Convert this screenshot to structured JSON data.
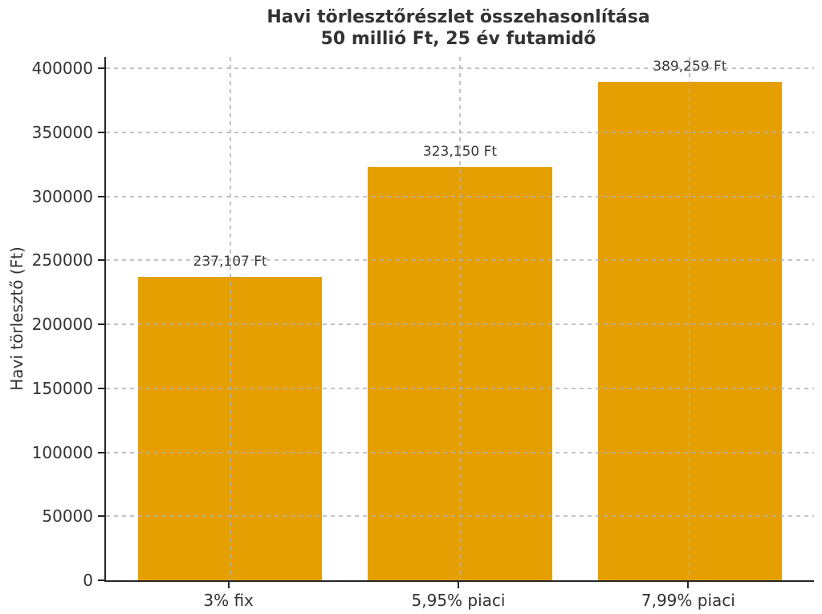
{
  "chart_data": {
    "type": "bar",
    "title": "Havi törlesztőrészlet összehasonlítása",
    "subtitle": "50 millió Ft, 25 év futamidő",
    "ylabel": "Havi törlesztő (Ft)",
    "xlabel": "",
    "categories": [
      "3% fix",
      "5,95% piaci",
      "7,99% piaci"
    ],
    "values": [
      237107,
      323150,
      389259
    ],
    "bar_labels": [
      "237,107 Ft",
      "323,150 Ft",
      "389,259 Ft"
    ],
    "ylim": [
      0,
      408722
    ],
    "yticks": [
      0,
      50000,
      100000,
      150000,
      200000,
      250000,
      300000,
      350000,
      400000
    ],
    "ytick_labels": [
      "0",
      "50000",
      "100000",
      "150000",
      "200000",
      "250000",
      "300000",
      "350000",
      "400000"
    ],
    "grid": {
      "visible": true,
      "axis": "both",
      "style": "dashed",
      "above_bars": true
    },
    "legend": null,
    "colors": {
      "bar": "#E69F00",
      "text": "#333333",
      "spine": "#262626",
      "grid": "#b0b0b0",
      "background": "#ffffff"
    }
  }
}
